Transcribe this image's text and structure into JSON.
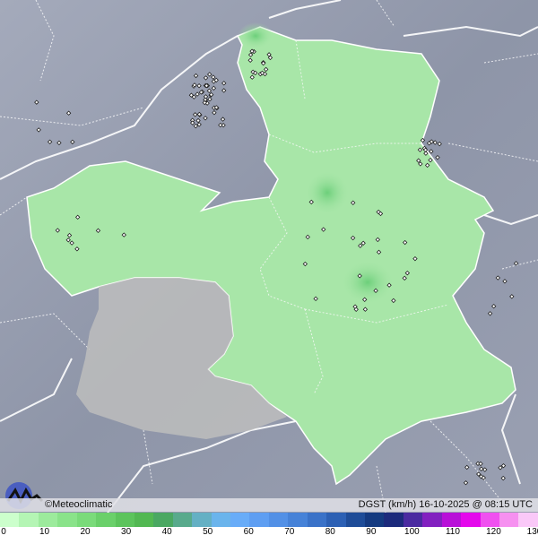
{
  "map": {
    "credit": "©Meteoclimatic",
    "title": "DGST (km/h)  16-10-2025 @ 08:15 UTC",
    "logo": "meteoclimatic-logo"
  },
  "legend": {
    "ticks": [
      "0",
      "10",
      "20",
      "30",
      "40",
      "50",
      "60",
      "70",
      "80",
      "90",
      "100",
      "110",
      "120",
      "130"
    ],
    "colors": [
      "#ccffcc",
      "#b4f5b4",
      "#9ceb9c",
      "#8ae38a",
      "#7adb7a",
      "#6ad06a",
      "#5cc45c",
      "#52b852",
      "#4aa862",
      "#58aa8c",
      "#64b0c4",
      "#6ab4ec",
      "#68acf8",
      "#5e9ef2",
      "#5290e6",
      "#4682d8",
      "#3a72c8",
      "#2c60b4",
      "#1e4c98",
      "#143a80",
      "#1c2a7c",
      "#4a2aa0",
      "#8220c0",
      "#b810d8",
      "#e408ec",
      "#f050f0",
      "#f690f0",
      "#fac8f8"
    ],
    "region_fill": "#a8e6a8",
    "no_data_fill": "#bdbdbd",
    "background": "#8f96a8"
  }
}
